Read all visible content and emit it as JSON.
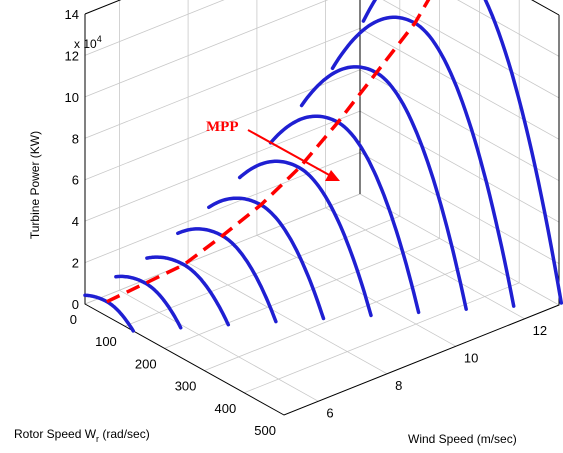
{
  "chart_data": {
    "type": "3d-line",
    "zlabel": "Turbine Power (KW)",
    "xlabel_main": "Rotor Speed W",
    "xlabel_sub": "r",
    "xlabel_unit": " (rad/sec)",
    "ylabel": "Wind Speed (m/sec)",
    "z_multiplier_base": "x 10",
    "z_multiplier_exp": "4",
    "annotation": "MPP",
    "xlim": [
      0,
      500
    ],
    "ylim": [
      5,
      13
    ],
    "zlim": [
      0,
      140000
    ],
    "x_ticks": [
      0,
      100,
      200,
      300,
      400,
      500
    ],
    "y_ticks": [
      6,
      8,
      10,
      12
    ],
    "z_ticks": [
      0,
      2,
      4,
      6,
      8,
      10,
      12,
      14
    ],
    "series": [
      {
        "wind_speed": 5.0,
        "peak_rotor_speed": 55,
        "peak_power": 7000
      },
      {
        "wind_speed": 5.9,
        "peak_rotor_speed": 74,
        "peak_power": 12000
      },
      {
        "wind_speed": 6.8,
        "peak_rotor_speed": 93,
        "peak_power": 17000
      },
      {
        "wind_speed": 7.7,
        "peak_rotor_speed": 112,
        "peak_power": 27000
      },
      {
        "wind_speed": 8.6,
        "peak_rotor_speed": 131,
        "peak_power": 38000
      },
      {
        "wind_speed": 9.5,
        "peak_rotor_speed": 150,
        "peak_power": 52000
      },
      {
        "wind_speed": 10.4,
        "peak_rotor_speed": 169,
        "peak_power": 70000
      },
      {
        "wind_speed": 11.3,
        "peak_rotor_speed": 188,
        "peak_power": 90000
      },
      {
        "wind_speed": 12.2,
        "peak_rotor_speed": 207,
        "peak_power": 110000
      },
      {
        "wind_speed": 13.1,
        "peak_rotor_speed": 226,
        "peak_power": 138000
      }
    ],
    "colors": {
      "curves": "#1f1fd2",
      "mpp_line": "#ff0000",
      "annotation": "#ff0000",
      "grid": "#c8c8c8"
    },
    "grid": true
  }
}
